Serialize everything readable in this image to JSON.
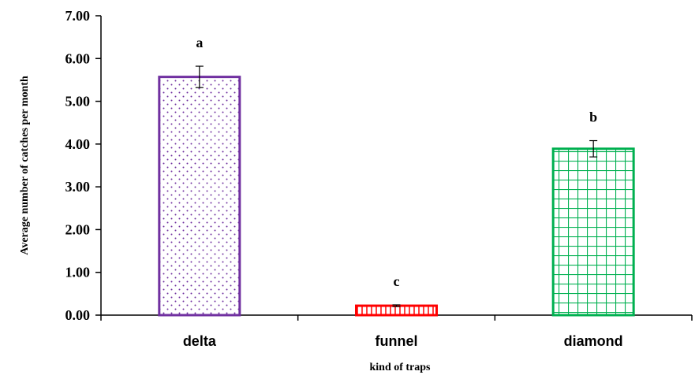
{
  "chart_data": {
    "type": "bar",
    "categories": [
      "delta",
      "funnel",
      "diamond"
    ],
    "values": [
      5.57,
      0.22,
      3.89
    ],
    "errors": [
      0.25,
      0.02,
      0.19
    ],
    "significance_labels": [
      "a",
      "c",
      "b"
    ],
    "title": "",
    "xlabel": "kind of traps",
    "ylabel": "Average number of catches per month",
    "ylim": [
      0,
      7
    ],
    "yticks": [
      "0.00",
      "1.00",
      "2.00",
      "3.00",
      "4.00",
      "5.00",
      "6.00",
      "7.00"
    ],
    "grid": false,
    "legend": "none",
    "bar_colors": [
      "#7030A0",
      "#FF0000",
      "#00B050"
    ],
    "bar_patterns": [
      "dots",
      "vertical-lines",
      "grid"
    ]
  }
}
